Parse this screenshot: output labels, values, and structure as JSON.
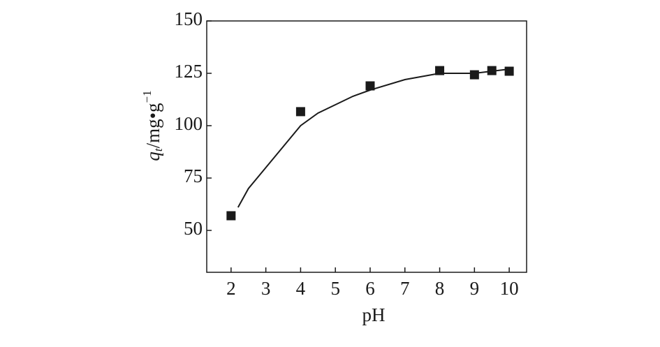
{
  "chart_data": {
    "type": "scatter",
    "xlabel": "pH",
    "ylabel": {
      "main": "q",
      "sub": "t",
      "unit": "/mg•g",
      "sup": "−1"
    },
    "xlim": [
      1.3,
      10.5
    ],
    "xticks": [
      2,
      3,
      4,
      5,
      6,
      7,
      8,
      9,
      10
    ],
    "ylim": [
      30,
      150
    ],
    "yticks": [
      50,
      75,
      100,
      125,
      150
    ],
    "grid": false,
    "series": [
      {
        "color": "#1a1a1a",
        "marker": "square",
        "x": [
          2,
          4,
          6,
          8,
          9,
          9.5,
          10
        ],
        "values": [
          57,
          106.7,
          119,
          126.3,
          124.3,
          126.3,
          126
        ]
      }
    ],
    "fit": {
      "color": "#1a1a1a",
      "x": [
        2.2,
        2.5,
        3,
        3.5,
        4,
        4.5,
        5,
        5.5,
        6,
        7,
        8,
        9,
        9.5,
        10
      ],
      "values": [
        61,
        70,
        80,
        90,
        100,
        106,
        110,
        114,
        117,
        122,
        125,
        125,
        126,
        127
      ]
    }
  }
}
